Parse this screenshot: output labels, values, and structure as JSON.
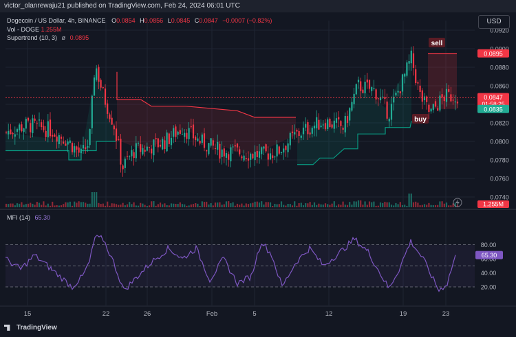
{
  "header": {
    "text": "victor_olanrewaju21 published on TradingView.com, Feb 24, 2024 06:01 UTC"
  },
  "currency": "USD",
  "legend": {
    "symbol": "Dogecoin / US Dollar, 4h, BINANCE",
    "o_label": "O",
    "o": "0.0854",
    "h_label": "H",
    "h": "0.0856",
    "l_label": "L",
    "l": "0.0845",
    "c_label": "C",
    "c": "0.0847",
    "change": "−0.0007 (−0.82%)",
    "vol_label": "Vol - DOGE",
    "vol": "1.255M",
    "st_label": "Supertrend (10, 3)",
    "st_icon": "ø",
    "st": "0.0895",
    "mfi_label": "MFI (14)",
    "mfi": "65.30"
  },
  "price_axis": {
    "ticks": [
      "0.0920",
      "0.0900",
      "0.0880",
      "0.0860",
      "0.0840",
      "0.0820",
      "0.0800",
      "0.0780",
      "0.0760",
      "0.0740"
    ],
    "badge_supertrend": "0.0895",
    "badge_price": "0.0847",
    "badge_countdown": "01:58:25",
    "badge_low": "0.0835",
    "badge_vol": "1.255M"
  },
  "mfi_axis": {
    "ticks": [
      "80.00",
      "60.00",
      "40.00",
      "20.00"
    ],
    "badge": "65.30"
  },
  "time_axis": {
    "ticks": [
      "15",
      "22",
      "26",
      "Feb",
      "5",
      "12",
      "19",
      "23"
    ]
  },
  "annotations": {
    "sell": "sell",
    "buy": "buy"
  },
  "colors": {
    "up": "#22ab94",
    "down": "#f23645",
    "bg": "#131722",
    "mfi": "#7e57c2",
    "supertrend_up": "#089981",
    "supertrend_down": "#f23645"
  },
  "footer": {
    "brand": "TradingView"
  }
}
